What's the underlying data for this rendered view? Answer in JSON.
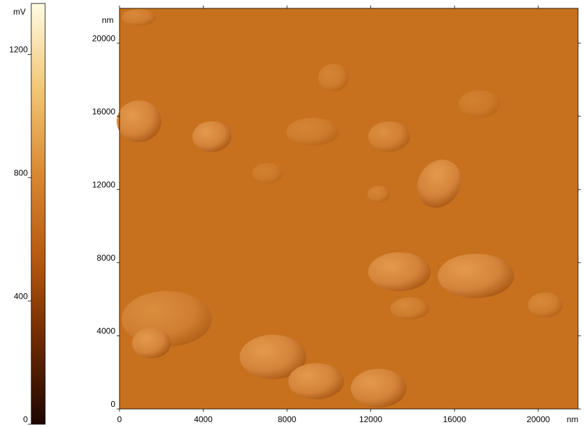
{
  "chart_data": {
    "type": "image",
    "colorbar_label": "mV",
    "clim": [
      0,
      1365
    ],
    "cticks": [
      0,
      400,
      800,
      1200
    ],
    "colormap": [
      "#1e0600",
      "#6e2a00",
      "#b85a12",
      "#d98a34",
      "#f2c777",
      "#fffbe2"
    ],
    "image_color": "#c7711f",
    "x_label": "nm",
    "y_label": "nm",
    "xlim": [
      0,
      21900
    ],
    "xticks": [
      0,
      4000,
      8000,
      12000,
      16000,
      20000
    ],
    "ylim": [
      0,
      21900
    ],
    "yticks": [
      0,
      4000,
      8000,
      12000,
      16000,
      20000
    ]
  }
}
